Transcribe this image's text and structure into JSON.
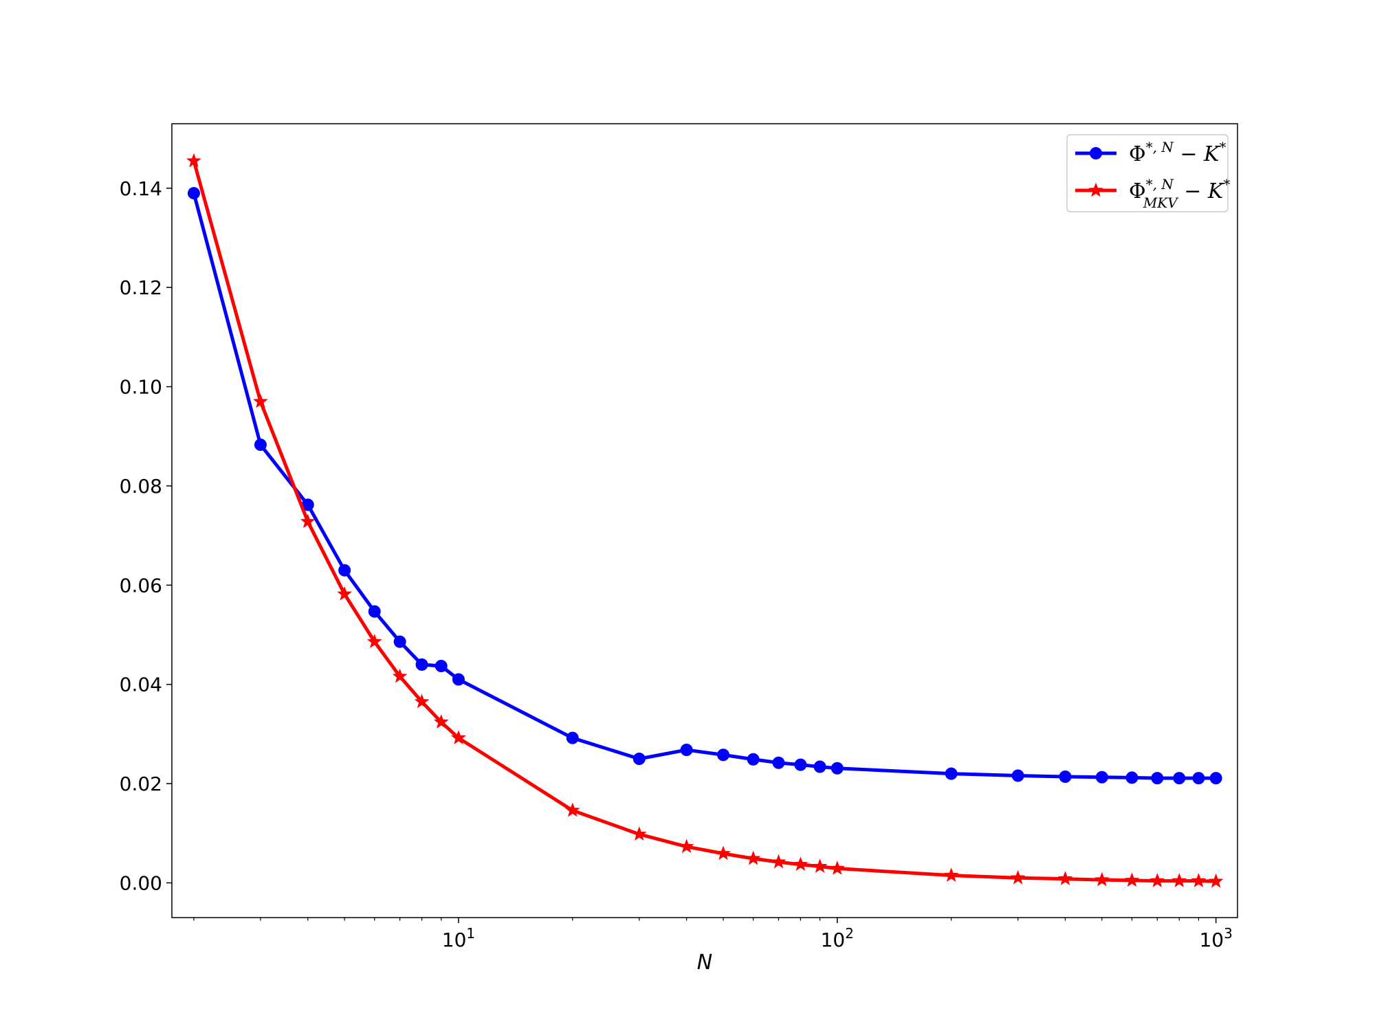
{
  "chart_data": {
    "type": "line",
    "xscale": "log",
    "xlabel": "N",
    "ylabel": "",
    "title": "",
    "xlim": [
      1.75,
      1140
    ],
    "ylim": [
      -0.007,
      0.153
    ],
    "grid": false,
    "legend_position": "top-right",
    "x_ticks": [
      10,
      100,
      1000
    ],
    "x_tick_labels": [
      {
        "base": "10",
        "exp": "1"
      },
      {
        "base": "10",
        "exp": "2"
      },
      {
        "base": "10",
        "exp": "3"
      }
    ],
    "y_ticks": [
      0.0,
      0.02,
      0.04,
      0.06,
      0.08,
      0.1,
      0.12,
      0.14
    ],
    "y_tick_labels": [
      "0.00",
      "0.02",
      "0.04",
      "0.06",
      "0.08",
      "0.10",
      "0.12",
      "0.14"
    ],
    "series": [
      {
        "name": "Φ*,N − K*",
        "legend": {
          "sym": "Φ",
          "sup": "*, N",
          "sub": "",
          "rest": " − K",
          "rest_sup": "*"
        },
        "color": "#0000ff",
        "marker": "circle",
        "x": [
          2,
          3,
          4,
          5,
          6,
          7,
          8,
          9,
          10,
          20,
          30,
          40,
          50,
          60,
          70,
          80,
          90,
          100,
          200,
          300,
          400,
          500,
          600,
          700,
          800,
          900,
          1000
        ],
        "y": [
          0.139,
          0.0883,
          0.0762,
          0.063,
          0.0547,
          0.0486,
          0.044,
          0.0437,
          0.041,
          0.0292,
          0.025,
          0.0268,
          0.0258,
          0.0249,
          0.0242,
          0.0238,
          0.0234,
          0.0231,
          0.022,
          0.0216,
          0.0214,
          0.0213,
          0.0212,
          0.0211,
          0.0211,
          0.0211,
          0.0211
        ]
      },
      {
        "name": "Φ*,N MKV − K*",
        "legend": {
          "sym": "Φ",
          "sup": "*, N",
          "sub": "MKV",
          "rest": " − K",
          "rest_sup": "*"
        },
        "color": "#ff0000",
        "marker": "star",
        "x": [
          2,
          3,
          4,
          5,
          6,
          7,
          8,
          9,
          10,
          20,
          30,
          40,
          50,
          60,
          70,
          80,
          90,
          100,
          200,
          300,
          400,
          500,
          600,
          700,
          800,
          900,
          1000
        ],
        "y": [
          0.1455,
          0.097,
          0.0728,
          0.0582,
          0.0486,
          0.0416,
          0.0365,
          0.0324,
          0.0292,
          0.0146,
          0.0098,
          0.0073,
          0.0059,
          0.0049,
          0.0042,
          0.0037,
          0.0033,
          0.0029,
          0.0015,
          0.001,
          0.0008,
          0.0006,
          0.0005,
          0.0004,
          0.0004,
          0.0004,
          0.0003
        ]
      }
    ]
  }
}
